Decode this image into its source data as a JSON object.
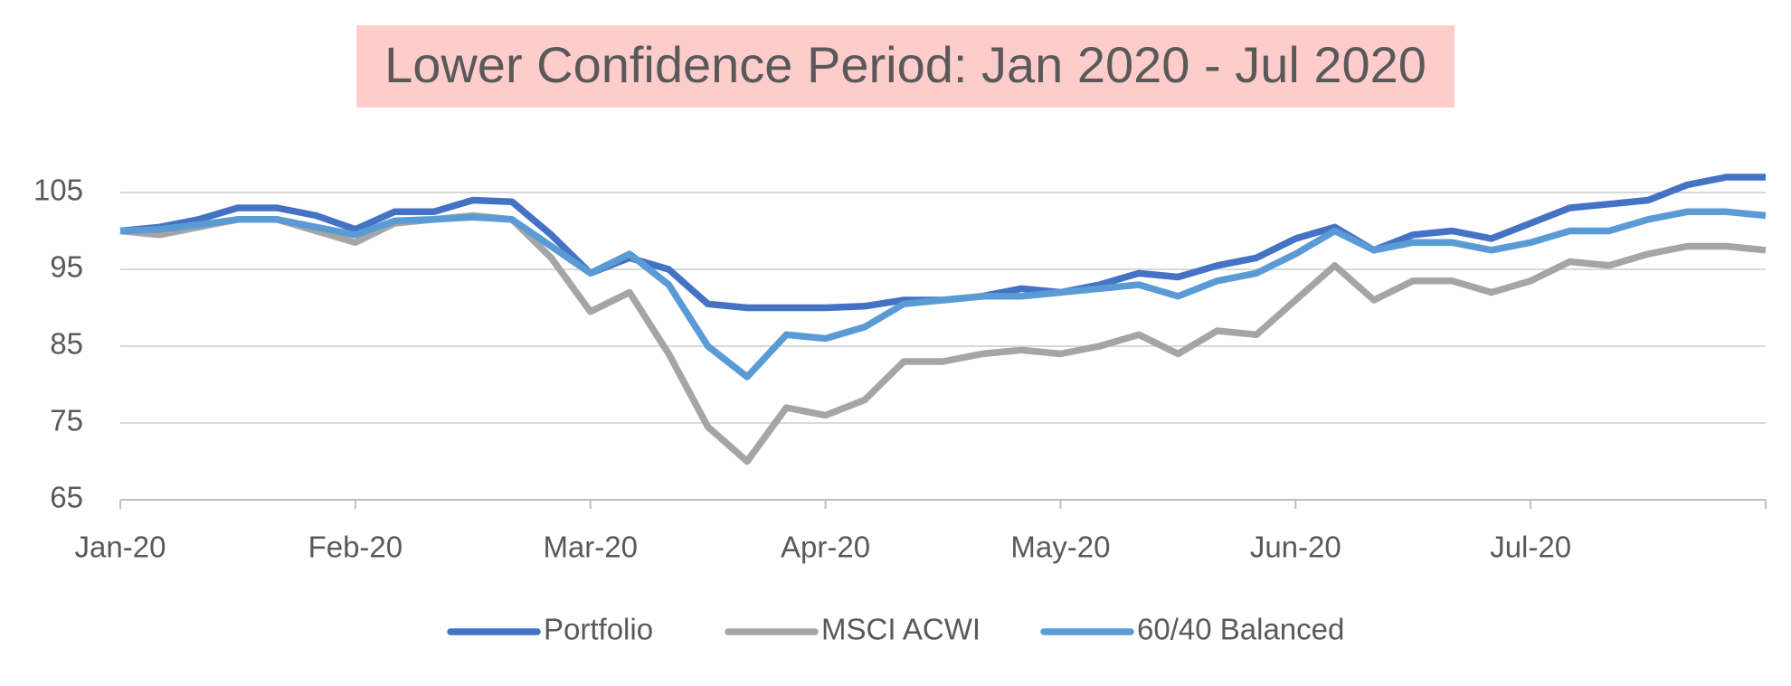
{
  "chart_data": {
    "type": "line",
    "title": "Lower Confidence Period: Jan 2020 - Jul 2020",
    "categories": [
      "Jan-20",
      null,
      null,
      null,
      null,
      null,
      "Feb-20",
      null,
      null,
      null,
      null,
      null,
      "Mar-20",
      null,
      null,
      null,
      null,
      null,
      "Apr-20",
      null,
      null,
      null,
      null,
      null,
      "May-20",
      null,
      null,
      null,
      null,
      null,
      "Jun-20",
      null,
      null,
      null,
      null,
      null,
      "Jul-20",
      null,
      null,
      null,
      null,
      null,
      null
    ],
    "series": [
      {
        "name": "Portfolio",
        "color": "#4472c4",
        "values": [
          100,
          100.5,
          101.5,
          103,
          103,
          102,
          100.2,
          102.5,
          102.5,
          104,
          103.8,
          99.5,
          94.5,
          96.5,
          95,
          90.5,
          90,
          90,
          90,
          90.2,
          91,
          91,
          91.5,
          92.5,
          92,
          93,
          94.5,
          94,
          95.5,
          96.5,
          99,
          100.5,
          97.5,
          99.5,
          100,
          99,
          101,
          103,
          103.5,
          104,
          106,
          107,
          107
        ]
      },
      {
        "name": "MSCI ACWI",
        "color": "#a5a5a5",
        "values": [
          100,
          99.5,
          100.5,
          101.5,
          101.5,
          100,
          98.5,
          101,
          101.5,
          102,
          101.5,
          96.5,
          89.5,
          92,
          84,
          74.5,
          70,
          77,
          76,
          78,
          83,
          83,
          84,
          84.5,
          84,
          85,
          86.5,
          84,
          87,
          86.5,
          91,
          95.5,
          91,
          93.5,
          93.5,
          92,
          93.5,
          96,
          95.5,
          97,
          98,
          98,
          97.5
        ]
      },
      {
        "name": "60/40 Balanced",
        "color": "#5b9bd5",
        "values": [
          100,
          100.2,
          100.8,
          101.5,
          101.5,
          100.5,
          99.5,
          101.3,
          101.5,
          101.8,
          101.5,
          98,
          94.5,
          97,
          93,
          85,
          81,
          86.5,
          86,
          87.5,
          90.5,
          91,
          91.5,
          91.5,
          92,
          92.5,
          93,
          91.5,
          93.5,
          94.5,
          97,
          100,
          97.5,
          98.5,
          98.5,
          97.5,
          98.5,
          100,
          100,
          101.5,
          102.5,
          102.5,
          102
        ]
      }
    ],
    "ylim": [
      65,
      110
    ],
    "yticks": [
      65,
      75,
      85,
      95,
      105
    ],
    "grid": true,
    "legend": "bottom"
  }
}
